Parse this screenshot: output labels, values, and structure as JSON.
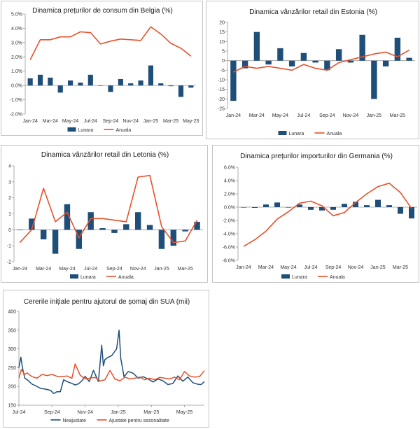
{
  "colors": {
    "bar": "#1f4e79",
    "line": "#e8502a",
    "axis": "#999999"
  },
  "chart_data": [
    {
      "id": "belgia",
      "type": "bar+line",
      "title": "Dinamica prețurilor de consum din Belgia (%)",
      "ylim": [
        -2.0,
        5.0
      ],
      "yticks": [
        "-2.0%",
        "-1.0%",
        "0.0%",
        "1.0%",
        "2.0%",
        "3.0%",
        "4.0%",
        "5.0%"
      ],
      "xticks": [
        "Jan-24",
        "Mar-24",
        "May-24",
        "Jul-24",
        "Sep-24",
        "Nov-24",
        "Jan-25",
        "Mar-25",
        "May-25"
      ],
      "categories": [
        "Jan-24",
        "Feb-24",
        "Mar-24",
        "Apr-24",
        "May-24",
        "Jun-24",
        "Jul-24",
        "Aug-24",
        "Sep-24",
        "Oct-24",
        "Nov-24",
        "Dec-24",
        "Jan-25",
        "Feb-25",
        "Mar-25",
        "Apr-25",
        "May-25"
      ],
      "series": [
        {
          "name": "Lunara",
          "kind": "bar",
          "values": [
            0.5,
            0.75,
            0.55,
            -0.5,
            0.35,
            0.2,
            0.75,
            0.0,
            -0.45,
            0.45,
            0.15,
            0.35,
            1.4,
            0.15,
            -0.05,
            -0.8,
            -0.15
          ]
        },
        {
          "name": "Anuala",
          "kind": "line",
          "values": [
            1.8,
            3.2,
            3.2,
            3.4,
            3.4,
            3.75,
            3.7,
            2.9,
            3.1,
            3.25,
            3.2,
            3.15,
            4.1,
            3.6,
            2.95,
            2.6,
            2.05
          ]
        }
      ],
      "legend": [
        "Lunara",
        "Anuala"
      ]
    },
    {
      "id": "estonia",
      "type": "bar+line",
      "title": "Dinamica vânzărilor retail din Estonia (%)",
      "ylim": [
        -25,
        20
      ],
      "yticks": [
        "-25",
        "-20",
        "-15",
        "-10",
        "-5",
        "0",
        "5",
        "10",
        "15",
        "20"
      ],
      "xticks": [
        "Jan-24",
        "Mar-24",
        "May-24",
        "Jul-24",
        "Sep-24",
        "Nov-24",
        "Jan-25",
        "Mar-25"
      ],
      "categories": [
        "Jan-24",
        "Feb-24",
        "Mar-24",
        "Apr-24",
        "May-24",
        "Jun-24",
        "Jul-24",
        "Aug-24",
        "Sep-24",
        "Oct-24",
        "Nov-24",
        "Dec-24",
        "Jan-25",
        "Feb-25",
        "Mar-25",
        "Apr-25"
      ],
      "series": [
        {
          "name": "Lunara",
          "kind": "bar",
          "values": [
            -21,
            -4,
            15,
            -2,
            6.5,
            -3,
            4,
            -1,
            -5,
            6,
            -1,
            13.5,
            -20,
            -3,
            12,
            1.5
          ]
        },
        {
          "name": "Anuala",
          "kind": "line",
          "values": [
            -6,
            -3,
            -4,
            -3,
            -4,
            -5,
            -2,
            -4,
            -5,
            -1,
            0.5,
            2,
            3.5,
            4.5,
            2,
            5.5
          ]
        }
      ],
      "legend": [
        "Lunara",
        "Anuala"
      ]
    },
    {
      "id": "letonia",
      "type": "bar+line",
      "title": "Dinamica vânzărilor retail din Letonia (%)",
      "ylim": [
        -2,
        4
      ],
      "yticks": [
        "-2",
        "-1",
        "0",
        "1",
        "2",
        "3",
        "4"
      ],
      "xticks": [
        "Jan-24",
        "Mar-24",
        "May-24",
        "Jul-24",
        "Sep-24",
        "Nov-24",
        "Jan-25",
        "Mar-25"
      ],
      "categories": [
        "Jan-24",
        "Feb-24",
        "Mar-24",
        "Apr-24",
        "May-24",
        "Jun-24",
        "Jul-24",
        "Aug-24",
        "Sep-24",
        "Oct-24",
        "Nov-24",
        "Dec-24",
        "Jan-25",
        "Feb-25",
        "Mar-25",
        "Apr-25"
      ],
      "series": [
        {
          "name": "Lunara",
          "kind": "bar",
          "values": [
            0.0,
            0.7,
            -0.6,
            -1.5,
            1.6,
            -1.2,
            1.1,
            0.1,
            -0.2,
            0.35,
            1.1,
            0.3,
            -1.2,
            -1.0,
            -0.1,
            0.5
          ]
        },
        {
          "name": "Anuala",
          "kind": "line",
          "values": [
            -0.8,
            0.0,
            2.6,
            0.5,
            1.1,
            -0.5,
            0.7,
            0.7,
            0.6,
            0.5,
            3.3,
            3.4,
            0.2,
            -0.8,
            -0.7,
            0.6
          ]
        }
      ],
      "legend": [
        "Lunara",
        "Anuala"
      ]
    },
    {
      "id": "germania",
      "type": "bar+line",
      "title": "Dinamica prețurilor importurilor din Germania (%)",
      "ylim": [
        -8.0,
        6.0
      ],
      "yticks": [
        "-8.0%",
        "-6.0%",
        "-4.0%",
        "-2.0%",
        "0.0%",
        "2.0%",
        "4.0%",
        "6.0%"
      ],
      "xticks": [
        "Jan-24",
        "Mar-24",
        "May-24",
        "Jul-24",
        "Sep-24",
        "Nov-24",
        "Jan-25",
        "Mar-25"
      ],
      "categories": [
        "Jan-24",
        "Feb-24",
        "Mar-24",
        "Apr-24",
        "May-24",
        "Jun-24",
        "Jul-24",
        "Aug-24",
        "Sep-24",
        "Oct-24",
        "Nov-24",
        "Dec-24",
        "Jan-25",
        "Feb-25",
        "Mar-25",
        "Apr-25"
      ],
      "series": [
        {
          "name": "Lunara",
          "kind": "bar",
          "values": [
            0.0,
            -0.1,
            0.4,
            0.7,
            0.0,
            0.4,
            -0.4,
            -0.5,
            -0.4,
            0.5,
            0.8,
            0.3,
            1.1,
            0.3,
            -1.0,
            -1.7
          ]
        },
        {
          "name": "Anuala",
          "kind": "line",
          "values": [
            -5.9,
            -4.9,
            -3.6,
            -1.8,
            -0.7,
            0.6,
            0.9,
            0.2,
            -1.3,
            -0.8,
            0.7,
            2.0,
            3.1,
            3.6,
            2.2,
            -0.2
          ]
        }
      ],
      "legend": [
        "Lunara",
        "Anuala"
      ]
    },
    {
      "id": "sua",
      "type": "line",
      "title": "Cererile inițiale pentru ajutorul de șomaj din SUA (mii)",
      "ylim": [
        150,
        400
      ],
      "yticks": [
        "150",
        "200",
        "250",
        "300",
        "350",
        "400"
      ],
      "xticks": [
        "Jul-24",
        "Sep-24",
        "Nov-24",
        "Jan-25",
        "Mar-25",
        "May-25"
      ],
      "xrange": [
        0,
        11.2
      ],
      "series": [
        {
          "name": "Neajustate",
          "x": [
            0,
            0.12,
            0.24,
            0.36,
            0.5,
            0.8,
            1.0,
            1.3,
            1.6,
            1.9,
            2.1,
            2.3,
            2.5,
            2.7,
            2.9,
            3.2,
            3.4,
            3.6,
            3.8,
            4.0,
            4.25,
            4.5,
            4.8,
            5.0,
            5.1,
            5.2,
            5.4,
            5.6,
            5.9,
            6.05,
            6.15,
            6.35,
            6.6,
            6.9,
            7.2,
            7.5,
            7.8,
            8.1,
            8.4,
            8.7,
            9.0,
            9.3,
            9.6,
            9.9,
            10.2,
            10.5,
            10.8,
            11.0,
            11.2
          ],
          "values": [
            250,
            278,
            244,
            222,
            218,
            206,
            202,
            195,
            193,
            190,
            181,
            186,
            186,
            218,
            213,
            208,
            204,
            207,
            215,
            227,
            213,
            243,
            213,
            310,
            255,
            272,
            278,
            282,
            300,
            350,
            275,
            226,
            240,
            235,
            222,
            226,
            220,
            212,
            220,
            215,
            205,
            208,
            228,
            214,
            225,
            210,
            206,
            205,
            213
          ]
        },
        {
          "name": "Ajustate pentru sezonalitate",
          "x": [
            0,
            0.15,
            0.35,
            0.5,
            0.8,
            1.1,
            1.4,
            1.7,
            2.0,
            2.3,
            2.6,
            2.9,
            3.2,
            3.4,
            3.7,
            4.0,
            4.3,
            4.6,
            4.9,
            5.2,
            5.5,
            5.8,
            6.1,
            6.4,
            6.7,
            7.0,
            7.3,
            7.6,
            7.9,
            8.2,
            8.5,
            8.8,
            9.1,
            9.4,
            9.7,
            10.0,
            10.3,
            10.6,
            10.9,
            11.2
          ],
          "values": [
            222,
            245,
            232,
            236,
            226,
            222,
            232,
            229,
            232,
            227,
            226,
            228,
            222,
            260,
            230,
            220,
            222,
            224,
            215,
            218,
            243,
            220,
            215,
            225,
            220,
            222,
            225,
            218,
            222,
            218,
            224,
            222,
            220,
            225,
            218,
            240,
            228,
            225,
            226,
            242
          ]
        }
      ],
      "legend": [
        "Neajustate",
        "Ajustate pentru sezonalitate"
      ]
    }
  ]
}
